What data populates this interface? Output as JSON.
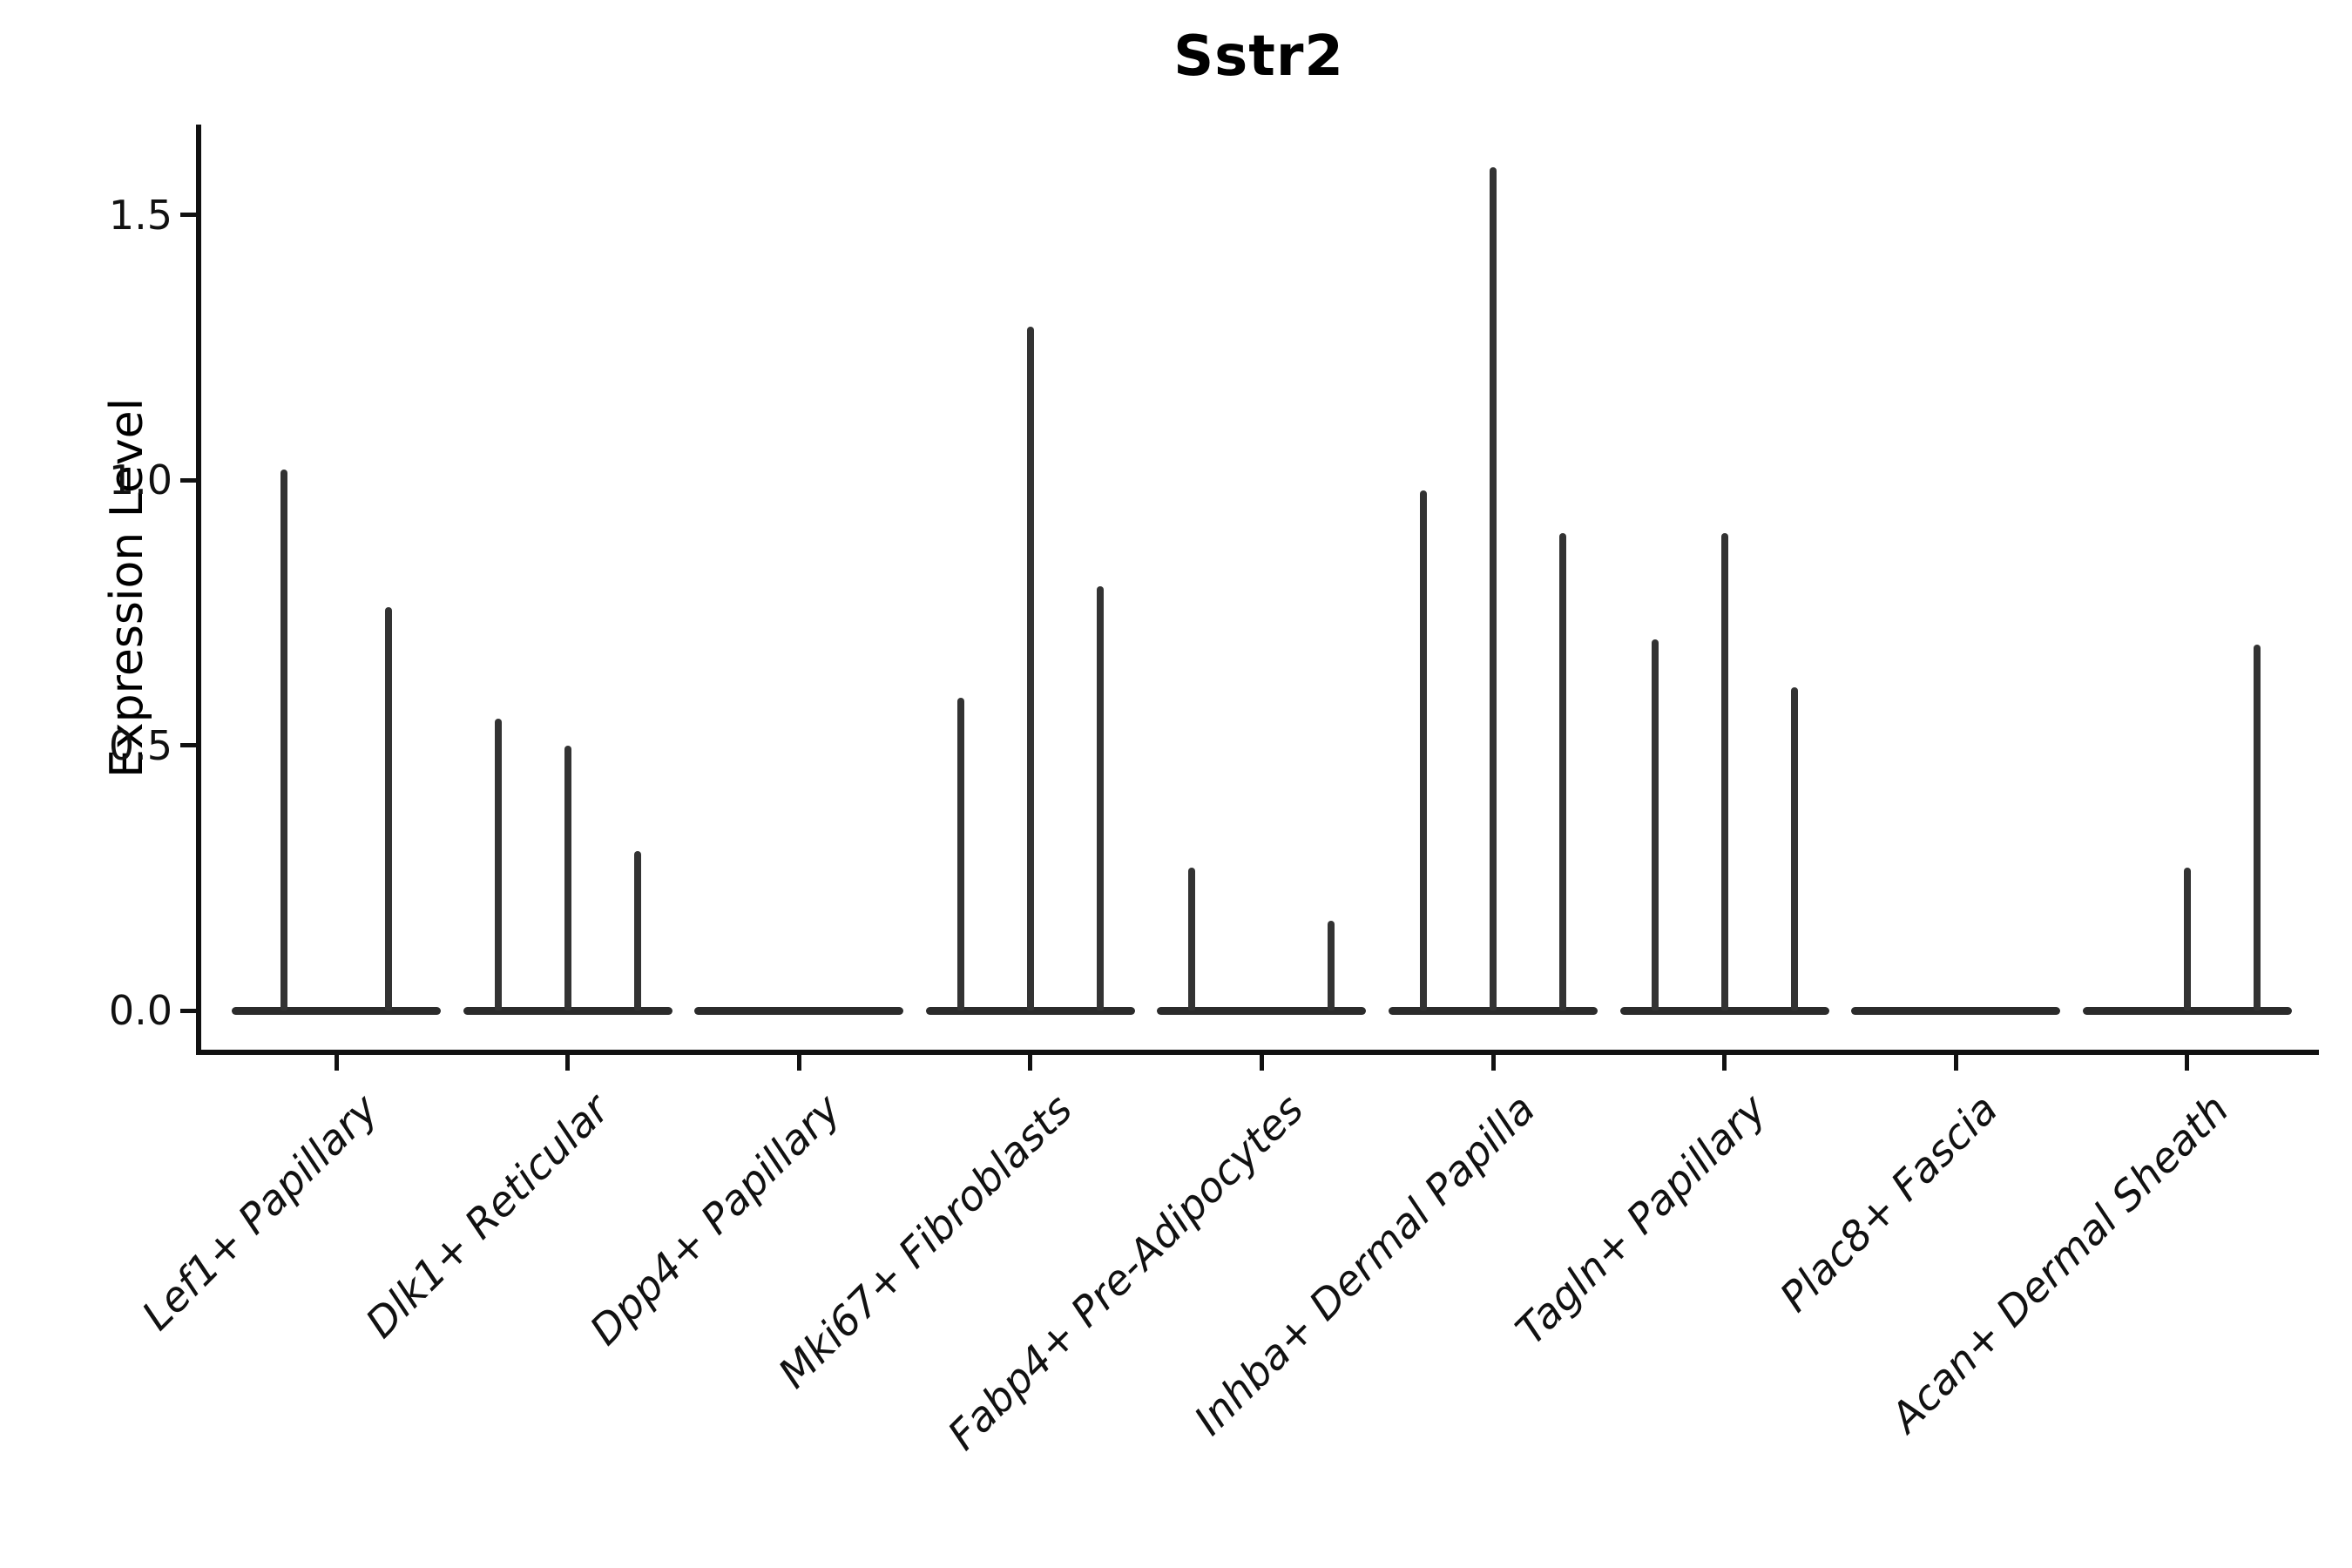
{
  "title": "Sstr2",
  "y_axis": {
    "label": "Expression Level",
    "tick_labels": [
      "0.0",
      "0.5",
      "1.0",
      "1.5"
    ],
    "tick_values": [
      0.0,
      0.5,
      1.0,
      1.5
    ]
  },
  "x_axis": {
    "categories": [
      "Lef1+ Papillary",
      "Dlk1+ Reticular",
      "Dpp4+ Papillary",
      "Mki67+ Fibroblasts",
      "Fabp4+ Pre-Adipocytes",
      "Inhba+ Dermal Papilla",
      "Tagln+ Papillary",
      "Plac8+ Fascia",
      "Acan+ Dermal Sheath"
    ]
  },
  "colors": {
    "background": "#ffffff",
    "axis": "#111111",
    "text": "#000000",
    "violin_baseline": "#2b2b2b",
    "spike": "#333333"
  },
  "chart_data": {
    "type": "violin",
    "title": "Sstr2",
    "xlabel": "",
    "ylabel": "Expression Level",
    "ylim": [
      -0.08,
      1.67
    ],
    "yticks": [
      0.0,
      0.5,
      1.0,
      1.5
    ],
    "grid": false,
    "legend": "none",
    "x_tick_rotation": 45,
    "description": "Violin plot of Sstr2 expression; violins are collapsed flat at 0 with thin spikes reaching each violin's maximum expression value.",
    "categories": [
      "Lef1+ Papillary",
      "Dlk1+ Reticular",
      "Dpp4+ Papillary",
      "Mki67+ Fibroblasts",
      "Fabp4+ Pre-Adipocytes",
      "Inhba+ Dermal Papilla",
      "Tagln+ Papillary",
      "Plac8+ Fascia",
      "Acan+ Dermal Sheath"
    ],
    "groups": [
      {
        "category": "Lef1+ Papillary",
        "n_violins": 2,
        "baseline": 0.0,
        "spikes": [
          {
            "violin": 1,
            "max_expression": 1.02
          },
          {
            "violin": 2,
            "max_expression": 0.76
          }
        ]
      },
      {
        "category": "Dlk1+ Reticular",
        "n_violins": 3,
        "baseline": 0.0,
        "spikes": [
          {
            "violin": 1,
            "max_expression": 0.55
          },
          {
            "violin": 2,
            "max_expression": 0.5
          },
          {
            "violin": 3,
            "max_expression": 0.3
          }
        ]
      },
      {
        "category": "Dpp4+ Papillary",
        "n_violins": 3,
        "baseline": 0.0,
        "spikes": []
      },
      {
        "category": "Mki67+ Fibroblasts",
        "n_violins": 3,
        "baseline": 0.0,
        "spikes": [
          {
            "violin": 1,
            "max_expression": 0.59
          },
          {
            "violin": 2,
            "max_expression": 1.29
          },
          {
            "violin": 3,
            "max_expression": 0.8
          }
        ]
      },
      {
        "category": "Fabp4+ Pre-Adipocytes",
        "n_violins": 3,
        "baseline": 0.0,
        "spikes": [
          {
            "violin": 1,
            "max_expression": 0.27
          },
          {
            "violin": 3,
            "max_expression": 0.17
          }
        ]
      },
      {
        "category": "Inhba+ Dermal Papilla",
        "n_violins": 3,
        "baseline": 0.0,
        "spikes": [
          {
            "violin": 1,
            "max_expression": 0.98
          },
          {
            "violin": 2,
            "max_expression": 1.59
          },
          {
            "violin": 3,
            "max_expression": 0.9
          }
        ]
      },
      {
        "category": "Tagln+ Papillary",
        "n_violins": 3,
        "baseline": 0.0,
        "spikes": [
          {
            "violin": 1,
            "max_expression": 0.7
          },
          {
            "violin": 2,
            "max_expression": 0.9
          },
          {
            "violin": 3,
            "max_expression": 0.61
          }
        ]
      },
      {
        "category": "Plac8+ Fascia",
        "n_violins": 3,
        "baseline": 0.0,
        "spikes": []
      },
      {
        "category": "Acan+ Dermal Sheath",
        "n_violins": 3,
        "baseline": 0.0,
        "spikes": [
          {
            "violin": 2,
            "max_expression": 0.27
          },
          {
            "violin": 3,
            "max_expression": 0.69
          }
        ]
      }
    ]
  }
}
